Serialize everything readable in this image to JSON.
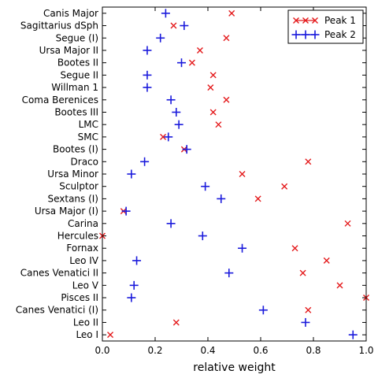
{
  "chart_data": {
    "type": "scatter",
    "orientation": "horizontal-categories",
    "xlabel": "relative weight",
    "xlim": [
      0.0,
      1.0
    ],
    "xticks": [
      "0.0",
      "0.2",
      "0.4",
      "0.6",
      "0.8",
      "1.0"
    ],
    "grid": false,
    "legend_position": "top-right",
    "categories": [
      "Canis Major",
      "Sagittarius dSph",
      "Segue (I)",
      "Ursa Major II",
      "Bootes II",
      "Segue II",
      "Willman 1",
      "Coma Berenices",
      "Bootes III",
      "LMC",
      "SMC",
      "Bootes (I)",
      "Draco",
      "Ursa Minor",
      "Sculptor",
      "Sextans (I)",
      "Ursa Major (I)",
      "Carina",
      "Hercules",
      "Fornax",
      "Leo IV",
      "Canes Venatici II",
      "Leo V",
      "Pisces II",
      "Canes Venatici (I)",
      "Leo II",
      "Leo I"
    ],
    "series": [
      {
        "name": "Peak 1",
        "marker": "x",
        "color": "#e41a1c",
        "values": [
          0.49,
          0.27,
          0.47,
          0.37,
          0.34,
          0.42,
          0.41,
          0.47,
          0.42,
          0.44,
          0.23,
          0.31,
          0.78,
          0.53,
          0.69,
          0.59,
          0.08,
          0.93,
          0.0,
          0.73,
          0.85,
          0.76,
          0.9,
          1.0,
          0.78,
          0.28,
          0.03
        ]
      },
      {
        "name": "Peak 2",
        "marker": "+",
        "color": "#1a1adc",
        "values": [
          0.24,
          0.31,
          0.22,
          0.17,
          0.3,
          0.17,
          0.17,
          0.26,
          0.28,
          0.29,
          0.25,
          0.32,
          0.16,
          0.11,
          0.39,
          0.45,
          0.09,
          0.26,
          0.38,
          0.53,
          0.13,
          0.48,
          0.12,
          0.11,
          0.61,
          0.77,
          0.95
        ]
      }
    ]
  }
}
